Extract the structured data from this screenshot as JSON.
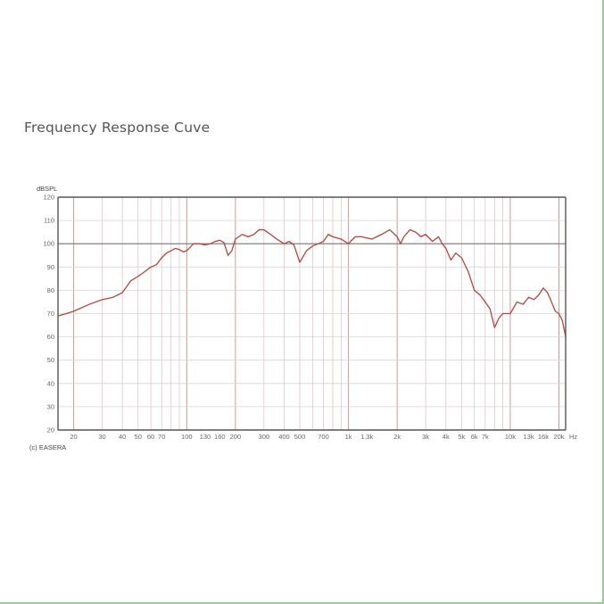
{
  "page": {
    "title": "Frequency Response Cuve"
  },
  "chart_data": {
    "type": "line",
    "title": "Frequency Response Cuve",
    "xlabel": "Hz",
    "ylabel": "dBSPL",
    "x_scale": "log",
    "xlim": [
      16,
      22000
    ],
    "ylim": [
      20,
      120
    ],
    "y_ticks": [
      20,
      30,
      40,
      50,
      60,
      70,
      80,
      90,
      100,
      110,
      120
    ],
    "y_tick_labels": [
      "20",
      "30",
      "40",
      "50",
      "60",
      "70",
      "80",
      "90",
      "100",
      "110",
      "120"
    ],
    "x_tick_values": [
      20,
      30,
      40,
      50,
      60,
      70,
      100,
      130,
      160,
      200,
      300,
      400,
      500,
      700,
      1000,
      1300,
      2000,
      3000,
      4000,
      5000,
      6000,
      7000,
      10000,
      13000,
      16000,
      20000
    ],
    "x_tick_labels": [
      "20",
      "30",
      "40",
      "50",
      "60",
      "70",
      "100",
      "130",
      "160",
      "200",
      "300",
      "400",
      "500",
      "700",
      "1k",
      "1.3k",
      "2k",
      "3k",
      "4k",
      "5k",
      "6k",
      "7k",
      "10k",
      "13k",
      "16k",
      "20k"
    ],
    "grid": true,
    "reference_line": 100,
    "footer": "(c) EASERA",
    "line_color": "#b5443a",
    "series": [
      {
        "x": [
          16,
          18,
          20,
          25,
          30,
          35,
          40,
          45,
          50,
          55,
          60,
          65,
          70,
          75,
          80,
          85,
          90,
          95,
          100,
          110,
          120,
          130,
          140,
          150,
          160,
          170,
          180,
          190,
          200,
          220,
          240,
          260,
          280,
          300,
          330,
          360,
          400,
          430,
          460,
          500,
          550,
          600,
          650,
          700,
          750,
          800,
          900,
          1000,
          1100,
          1200,
          1400,
          1600,
          1800,
          2000,
          2100,
          2200,
          2400,
          2600,
          2800,
          3000,
          3300,
          3600,
          3800,
          4000,
          4300,
          4600,
          5000,
          5500,
          6000,
          6500,
          7000,
          7500,
          8000,
          8500,
          9000,
          10000,
          11000,
          12000,
          13000,
          14000,
          15000,
          16000,
          17000,
          18000,
          19000,
          20000,
          21000,
          22000
        ],
        "y": [
          69,
          70,
          71,
          74,
          76,
          77,
          79,
          84,
          86,
          88,
          90,
          91,
          94,
          96,
          97,
          98,
          97.5,
          96.5,
          97,
          100,
          100,
          99.5,
          100,
          101,
          101.5,
          100.5,
          95,
          97,
          102,
          104,
          103,
          104,
          106,
          106,
          104,
          102,
          100,
          101,
          99.5,
          92,
          97,
          99,
          100,
          101,
          104,
          103,
          102,
          100,
          103,
          103,
          102,
          104,
          106,
          103,
          100,
          103,
          106,
          105,
          103,
          104,
          101,
          103,
          100,
          98,
          93,
          96,
          94,
          88,
          80,
          78,
          75,
          72,
          64,
          68,
          70,
          70,
          75,
          74,
          77,
          76,
          78,
          81,
          79,
          75,
          71,
          70,
          67,
          60
        ]
      }
    ]
  }
}
